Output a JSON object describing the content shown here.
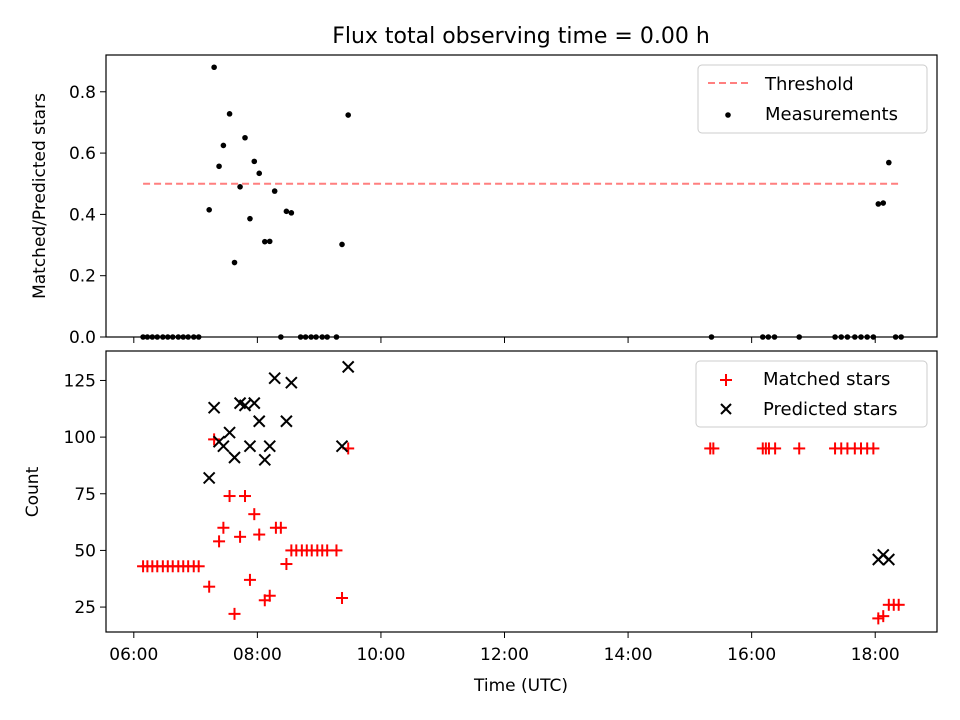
{
  "title": "Flux total observing time = 0.00 h",
  "xlabel": "Time (UTC)",
  "chart_data": [
    {
      "type": "scatter",
      "ylabel": "Matched/Predicted stars",
      "xlim": [
        5.55,
        19.0
      ],
      "ylim": [
        0,
        0.92
      ],
      "yticks": [
        {
          "v": 0.0,
          "label": "0.0"
        },
        {
          "v": 0.2,
          "label": "0.2"
        },
        {
          "v": 0.4,
          "label": "0.4"
        },
        {
          "v": 0.6,
          "label": "0.6"
        },
        {
          "v": 0.8,
          "label": "0.8"
        }
      ],
      "xticks": [
        6,
        8,
        10,
        12,
        14,
        16,
        18
      ],
      "legend": {
        "position": "top-right",
        "entries": [
          "Threshold",
          "Measurements"
        ]
      },
      "threshold": {
        "name": "Threshold",
        "y": 0.5,
        "x": [
          6.15,
          18.4
        ],
        "color": "#ff7f7f"
      },
      "measurements": {
        "name": "Measurements",
        "color": "#000000",
        "x": [
          6.15,
          6.22,
          6.3,
          6.38,
          6.47,
          6.55,
          6.63,
          6.72,
          6.8,
          6.88,
          6.97,
          7.05,
          7.22,
          7.3,
          7.38,
          7.45,
          7.55,
          7.63,
          7.72,
          7.8,
          7.88,
          7.95,
          8.03,
          8.12,
          8.2,
          8.28,
          8.38,
          8.47,
          8.55,
          8.7,
          8.78,
          8.87,
          8.95,
          9.05,
          9.13,
          9.28,
          9.37,
          9.47,
          15.35,
          16.18,
          16.27,
          16.37,
          16.77,
          17.35,
          17.45,
          17.55,
          17.67,
          17.77,
          17.87,
          17.97,
          18.05,
          18.13,
          18.22,
          18.33,
          18.42
        ],
        "y": [
          0,
          0,
          0,
          0,
          0,
          0,
          0,
          0,
          0,
          0,
          0,
          0,
          0.415,
          0.88,
          0.557,
          0.625,
          0.728,
          0.243,
          0.49,
          0.65,
          0.386,
          0.573,
          0.534,
          0.311,
          0.312,
          0.476,
          0,
          0.41,
          0.405,
          0,
          0,
          0,
          0,
          0,
          0,
          0,
          0.302,
          0.724,
          0,
          0,
          0,
          0,
          0,
          0,
          0,
          0,
          0,
          0,
          0,
          0,
          0.434,
          0.437,
          0.569,
          0,
          0
        ]
      }
    },
    {
      "type": "scatter",
      "ylabel": "Count",
      "xlim": [
        5.55,
        19.0
      ],
      "ylim": [
        14,
        138
      ],
      "yticks": [
        {
          "v": 25,
          "label": "25"
        },
        {
          "v": 50,
          "label": "50"
        },
        {
          "v": 75,
          "label": "75"
        },
        {
          "v": 100,
          "label": "100"
        },
        {
          "v": 125,
          "label": "125"
        }
      ],
      "xticks": [
        {
          "v": 6,
          "label": "06:00"
        },
        {
          "v": 8,
          "label": "08:00"
        },
        {
          "v": 10,
          "label": "10:00"
        },
        {
          "v": 12,
          "label": "12:00"
        },
        {
          "v": 14,
          "label": "14:00"
        },
        {
          "v": 16,
          "label": "16:00"
        },
        {
          "v": 18,
          "label": "18:00"
        }
      ],
      "legend": {
        "position": "top-right",
        "entries": [
          "Matched stars",
          "Predicted stars"
        ]
      },
      "series": [
        {
          "name": "Matched stars",
          "marker": "+",
          "color": "#ff0000",
          "x": [
            6.15,
            6.22,
            6.3,
            6.38,
            6.47,
            6.55,
            6.63,
            6.72,
            6.8,
            6.88,
            6.97,
            7.05,
            7.22,
            7.3,
            7.38,
            7.45,
            7.55,
            7.63,
            7.72,
            7.8,
            7.88,
            7.95,
            8.03,
            8.12,
            8.2,
            8.3,
            8.38,
            8.47,
            8.55,
            8.63,
            8.72,
            8.8,
            8.88,
            8.97,
            9.05,
            9.13,
            9.28,
            9.37,
            9.47,
            15.33,
            15.38,
            16.18,
            16.23,
            16.28,
            16.38,
            16.77,
            17.35,
            17.45,
            17.55,
            17.67,
            17.77,
            17.87,
            17.97,
            18.05,
            18.13,
            18.22,
            18.3,
            18.38
          ],
          "y": [
            43,
            43,
            43,
            43,
            43,
            43,
            43,
            43,
            43,
            43,
            43,
            43,
            34,
            99,
            54,
            60,
            74,
            22,
            56,
            74,
            37,
            66,
            57,
            28,
            30,
            60,
            60,
            44,
            50,
            50,
            50,
            50,
            50,
            50,
            50,
            50,
            50,
            29,
            95,
            95,
            95,
            95,
            95,
            95,
            95,
            95,
            95,
            95,
            95,
            95,
            95,
            95,
            95,
            20,
            21,
            26,
            26,
            26
          ]
        },
        {
          "name": "Predicted stars",
          "marker": "x",
          "color": "#000000",
          "x": [
            7.22,
            7.3,
            7.38,
            7.45,
            7.55,
            7.63,
            7.72,
            7.8,
            7.88,
            7.95,
            8.03,
            8.12,
            8.2,
            8.28,
            8.47,
            8.55,
            9.37,
            9.47,
            18.05,
            18.13,
            18.22
          ],
          "y": [
            82,
            113,
            98,
            96,
            102,
            91,
            115,
            114,
            96,
            115,
            107,
            90,
            96,
            126,
            107,
            124,
            96,
            131,
            46,
            48,
            46
          ]
        }
      ]
    }
  ]
}
